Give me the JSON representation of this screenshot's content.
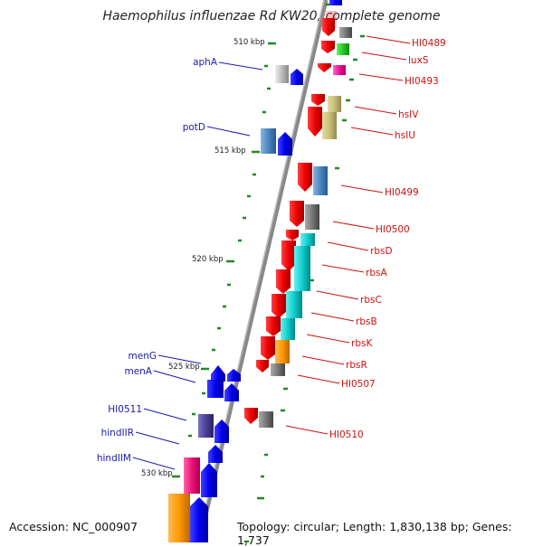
{
  "title": "Haemophilus influenzae Rd KW20, complete genome",
  "footer": {
    "accession": "Accession: NC_000907",
    "topology": "Topology: circular; Length: 1,830,138 bp; Genes: 1,737"
  },
  "scale_labels": [
    "510 kbp",
    "515 kbp",
    "520 kbp",
    "525 kbp",
    "530 kbp"
  ],
  "genes_right": [
    "HI0489",
    "luxS",
    "HI0493",
    "hsIV",
    "hsIU",
    "HI0499",
    "HI0500",
    "rbsD",
    "rbsA",
    "rbsC",
    "rbsB",
    "rbsK",
    "rbsR",
    "HI0507",
    "HI0510"
  ],
  "genes_left": [
    "aphA",
    "potD",
    "menG",
    "menA",
    "HI0511",
    "hindIIR",
    "hindIIM"
  ],
  "colors": {
    "strand_forward": "#0000ee",
    "strand_reverse": "#ee0000",
    "label_right": "#cc1111",
    "label_left": "#1a1aaa",
    "tick": "#228822",
    "backbone": "#888888"
  }
}
